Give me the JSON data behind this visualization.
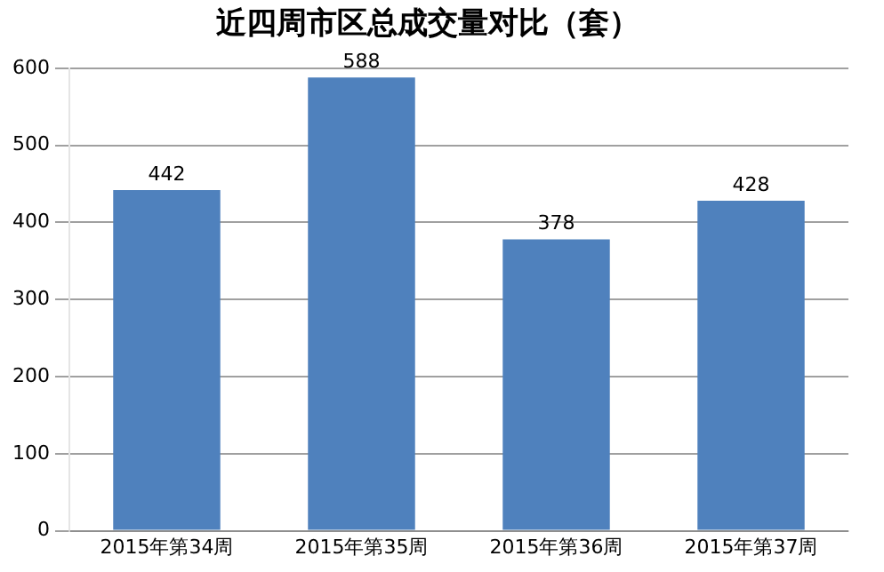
{
  "chart_data": {
    "type": "bar",
    "title": "近四周市区总成交量对比（套）",
    "categories": [
      "2015年第34周",
      "2015年第35周",
      "2015年第36周",
      "2015年第37周"
    ],
    "values": [
      442,
      588,
      378,
      428
    ],
    "color": "#4f81bd",
    "ylim": [
      0,
      600
    ],
    "yticks": [
      0,
      100,
      200,
      300,
      400,
      500,
      600
    ],
    "grid": "y",
    "data_labels": true,
    "legend": false
  }
}
